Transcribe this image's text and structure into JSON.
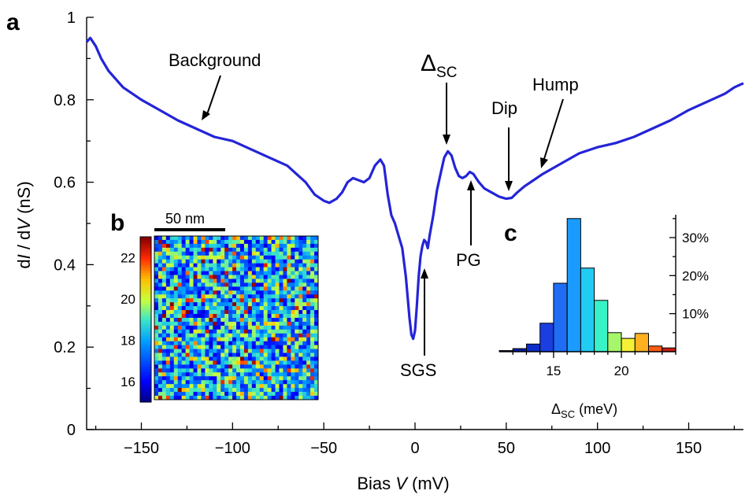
{
  "chart_data": [
    {
      "panel": "a",
      "type": "line",
      "xlabel_prefix": "Bias ",
      "xlabel_var": "V",
      "xlabel_suffix": " (mV)",
      "ylabel_prefix": "d",
      "ylabel_i": "I",
      "ylabel_mid": " / d",
      "ylabel_v": "V",
      "ylabel_suffix": " (nS)",
      "xlim": [
        -180,
        180
      ],
      "ylim": [
        0,
        1.0
      ],
      "xticks": [
        -150,
        -100,
        -50,
        0,
        50,
        100,
        150
      ],
      "xticklabels": [
        "−150",
        "−100",
        "−50",
        "0",
        "50",
        "100",
        "150"
      ],
      "yticks": [
        0,
        0.2,
        0.4,
        0.6,
        0.8,
        1.0
      ],
      "yticklabels": [
        "0",
        "0.2",
        "0.4",
        "0.6",
        "0.8",
        "1"
      ],
      "series": [
        {
          "name": "dI/dV spectrum",
          "color": "#2424d8",
          "x": [
            -180,
            -178,
            -175,
            -172,
            -168,
            -160,
            -150,
            -140,
            -130,
            -120,
            -110,
            -100,
            -90,
            -80,
            -70,
            -60,
            -55,
            -50,
            -47,
            -43,
            -40,
            -37,
            -34,
            -31,
            -28,
            -25,
            -22,
            -19,
            -17,
            -15,
            -13,
            -11,
            -9,
            -7,
            -5,
            -4,
            -3,
            -2,
            -1,
            0,
            1,
            2,
            3,
            4,
            5,
            6,
            7,
            8,
            10,
            12,
            14,
            16,
            18,
            20,
            22,
            24,
            26,
            28,
            30,
            32,
            35,
            38,
            42,
            46,
            50,
            53,
            56,
            60,
            65,
            70,
            80,
            90,
            100,
            110,
            120,
            130,
            140,
            150,
            160,
            170,
            175,
            180
          ],
          "y": [
            0.94,
            0.95,
            0.93,
            0.9,
            0.87,
            0.83,
            0.8,
            0.775,
            0.75,
            0.73,
            0.71,
            0.7,
            0.68,
            0.66,
            0.64,
            0.6,
            0.57,
            0.555,
            0.55,
            0.56,
            0.575,
            0.6,
            0.61,
            0.605,
            0.6,
            0.61,
            0.64,
            0.655,
            0.64,
            0.57,
            0.52,
            0.5,
            0.47,
            0.44,
            0.37,
            0.32,
            0.27,
            0.23,
            0.22,
            0.24,
            0.3,
            0.37,
            0.42,
            0.445,
            0.46,
            0.455,
            0.44,
            0.47,
            0.52,
            0.58,
            0.62,
            0.66,
            0.675,
            0.665,
            0.635,
            0.615,
            0.61,
            0.615,
            0.625,
            0.62,
            0.6,
            0.585,
            0.575,
            0.565,
            0.56,
            0.562,
            0.575,
            0.59,
            0.605,
            0.62,
            0.645,
            0.67,
            0.685,
            0.695,
            0.71,
            0.73,
            0.75,
            0.775,
            0.795,
            0.815,
            0.83,
            0.84
          ]
        }
      ],
      "annotations": [
        {
          "label": "Background"
        },
        {
          "label": "Δ",
          "sub": "SC"
        },
        {
          "label": "Dip"
        },
        {
          "label": "Hump"
        },
        {
          "label": "PG"
        },
        {
          "label": "SGS"
        }
      ]
    },
    {
      "panel": "b",
      "type": "heatmap",
      "scalebar_label": "50 nm",
      "colorbar_ticks": [
        16,
        18,
        20,
        22
      ],
      "colorbar_range": [
        15,
        23
      ],
      "grid_cells": 42
    },
    {
      "panel": "c",
      "type": "bar",
      "xlabel": "Δ",
      "xlabel_sub": "SC",
      "xlabel_unit": " (meV)",
      "xlim": [
        11,
        24
      ],
      "xticks": [
        15,
        20
      ],
      "ylim": [
        0,
        36
      ],
      "yticks": [
        10,
        20,
        30
      ],
      "yticklabels": [
        "10%",
        "20%",
        "30%"
      ],
      "bins": [
        11.5,
        12.5,
        13.5,
        14.5,
        15.5,
        16.5,
        17.5,
        18.5,
        19.5,
        20.5,
        21.5,
        22.5,
        23.5
      ],
      "values": [
        0.3,
        0.8,
        2,
        7.5,
        18,
        35,
        22,
        13.5,
        5,
        3.5,
        4.8,
        1.5,
        1
      ],
      "colors": [
        "#0a1678",
        "#0a1fa0",
        "#0d2dc8",
        "#1a3ee0",
        "#1f6cf5",
        "#1a9bff",
        "#22cbf2",
        "#38f2c8",
        "#a6f56a",
        "#f5f036",
        "#ffb020",
        "#ff5a14",
        "#c81e14"
      ]
    }
  ]
}
